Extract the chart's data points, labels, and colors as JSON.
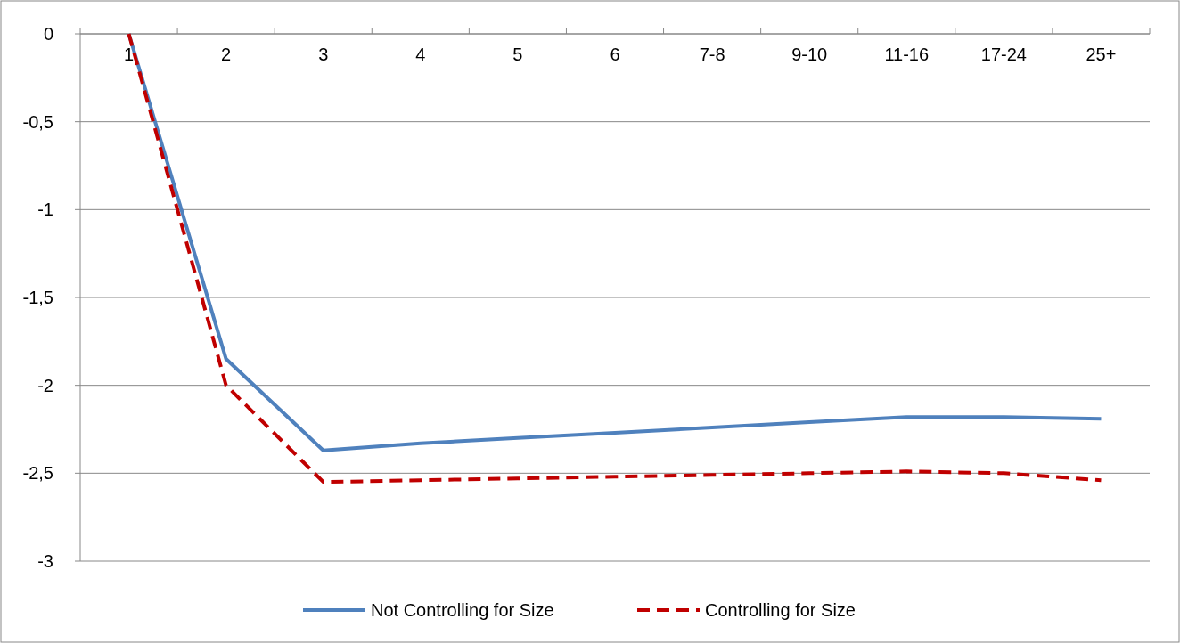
{
  "chart_data": {
    "type": "line",
    "categories": [
      "1",
      "2",
      "3",
      "4",
      "5",
      "6",
      "7-8",
      "9-10",
      "11-16",
      "17-24",
      "25+"
    ],
    "series": [
      {
        "name": "Not Controlling for Size",
        "color": "#4f81bd",
        "line_style": "solid",
        "values": [
          0,
          -1.85,
          -2.37,
          -2.33,
          -2.3,
          -2.27,
          -2.24,
          -2.21,
          -2.18,
          -2.18,
          -2.19
        ]
      },
      {
        "name": "Controlling for Size",
        "color": "#c00000",
        "line_style": "dashed",
        "values": [
          0,
          -2.0,
          -2.55,
          -2.54,
          -2.53,
          -2.52,
          -2.51,
          -2.5,
          -2.49,
          -2.5,
          -2.54
        ]
      }
    ],
    "ylim": [
      -3,
      0
    ],
    "yticks": [
      0,
      {
        "value": -0.5,
        "label": "-0,5"
      },
      -1,
      {
        "value": -1.5,
        "label": "-1,5"
      },
      -2,
      {
        "value": -2.5,
        "label": "-2,5"
      },
      -3
    ],
    "grid": "y",
    "legend": "bottom"
  }
}
